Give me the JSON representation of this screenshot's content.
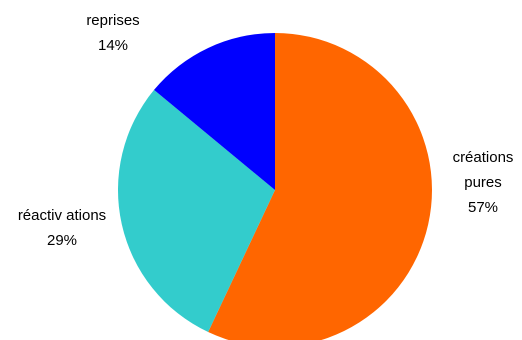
{
  "chart_data": {
    "type": "pie",
    "title": "",
    "slices": [
      {
        "label_lines": [
          "créations",
          "pures"
        ],
        "value": 57,
        "value_label": "57%",
        "color": "#ff6600"
      },
      {
        "label_lines": [
          "réactiv ations"
        ],
        "value": 29,
        "value_label": "29%",
        "color": "#33cccc"
      },
      {
        "label_lines": [
          "reprises"
        ],
        "value": 14,
        "value_label": "14%",
        "color": "#0000ff"
      }
    ],
    "start": "12 o'clock",
    "direction": "clockwise",
    "legend": "none"
  }
}
